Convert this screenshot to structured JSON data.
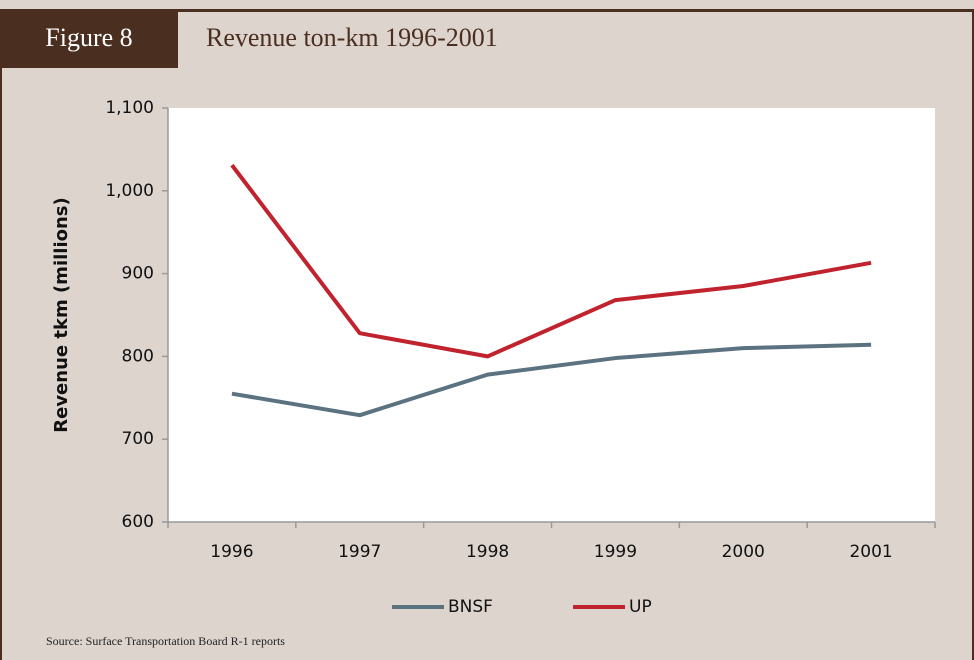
{
  "chart_data": {
    "type": "line",
    "figure_label": "Figure 8",
    "title": "Revenue ton-km 1996-2001",
    "ylabel": "Revenue tkm (millions)",
    "source": "Source: Surface Transportation Board R-1 reports",
    "categories": [
      "1996",
      "1997",
      "1998",
      "1999",
      "2000",
      "2001"
    ],
    "series": [
      {
        "name": "BNSF",
        "color": "#5b7280",
        "values": [
          755,
          729,
          778,
          798,
          810,
          814
        ]
      },
      {
        "name": "UP",
        "color": "#c0222e",
        "values": [
          1031,
          828,
          800,
          868,
          885,
          913
        ]
      }
    ],
    "ylim": [
      600,
      1100
    ],
    "yticks": [
      600,
      700,
      800,
      900,
      {
        "value": 1000,
        "label": "1,000"
      },
      {
        "value": 1100,
        "label": "1,100"
      }
    ],
    "grid": false,
    "legend": "bottom"
  }
}
